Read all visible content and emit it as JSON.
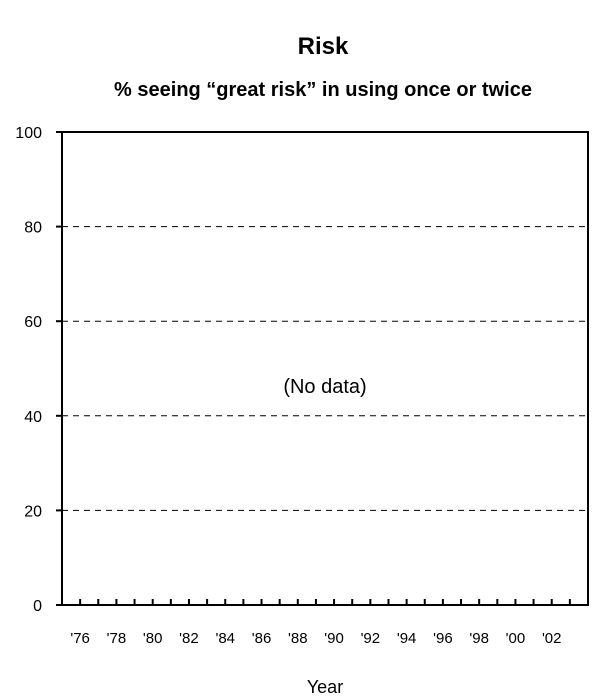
{
  "chart_data": {
    "type": "line",
    "title": "Risk",
    "subtitle": "% seeing “great risk” in using once or twice",
    "xlabel": "Year",
    "ylabel": "",
    "ylim": [
      0,
      100
    ],
    "yticks": [
      "0",
      "20",
      "40",
      "60",
      "80",
      "100"
    ],
    "xlim": [
      1975,
      2004
    ],
    "x_tick_labels": [
      "'76",
      "'78",
      "'80",
      "'82",
      "'84",
      "'86",
      "'88",
      "'90",
      "'92",
      "'94",
      "'96",
      "'98",
      "'00",
      "'02"
    ],
    "x_tick_years": [
      1976,
      1978,
      1980,
      1982,
      1984,
      1986,
      1988,
      1990,
      1992,
      1994,
      1996,
      1998,
      2000,
      2002
    ],
    "grid": "dashed horizontal",
    "annotation": "(No data)",
    "series": []
  }
}
